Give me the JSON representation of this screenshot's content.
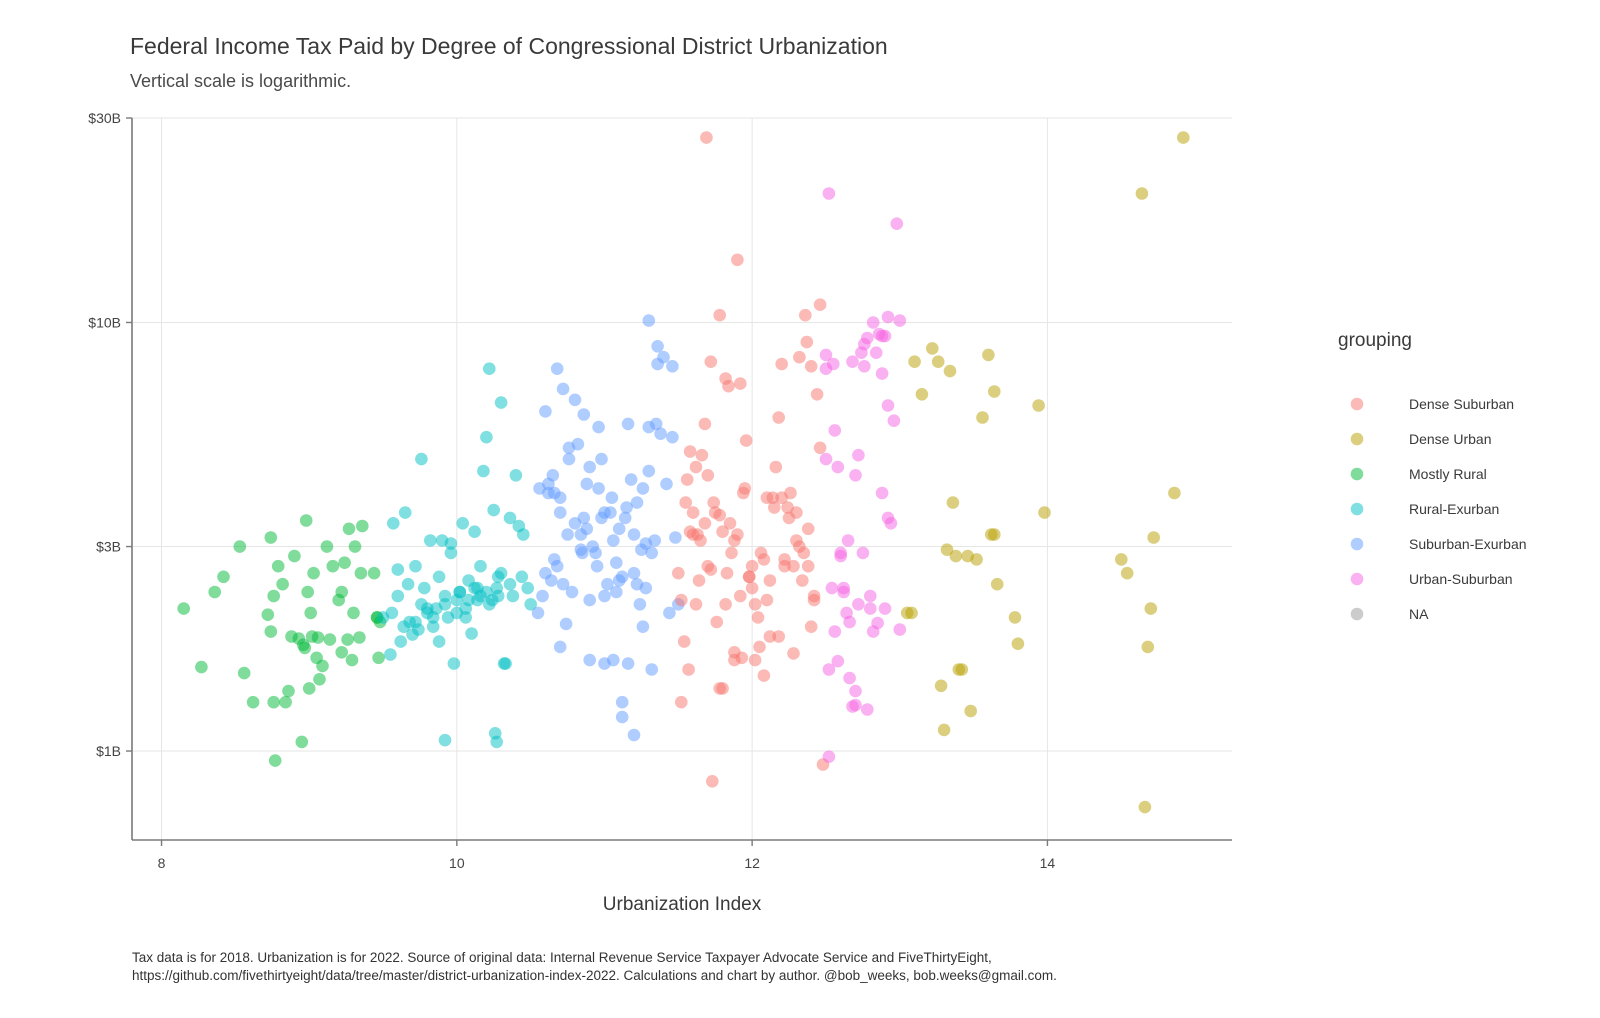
{
  "chart_data": {
    "type": "scatter",
    "title": "Federal Income Tax Paid by Degree of Congressional District Urbanization",
    "subtitle": "Vertical scale is logarithmic.",
    "xlabel": "Urbanization Index",
    "ylabel": "",
    "x_ticks": [
      {
        "value": 8,
        "label": "8"
      },
      {
        "value": 10,
        "label": "10"
      },
      {
        "value": 12,
        "label": "12"
      },
      {
        "value": 14,
        "label": "14"
      }
    ],
    "y_ticks": [
      {
        "value": 1,
        "label": "$1B"
      },
      {
        "value": 3,
        "label": "$3B"
      },
      {
        "value": 10,
        "label": "$10B"
      },
      {
        "value": 30,
        "label": "$30B"
      }
    ],
    "xlim": [
      7.8,
      15.25
    ],
    "ylim": [
      0.62,
      30
    ],
    "y_scale": "log",
    "grid": true,
    "legend": {
      "title": "grouping",
      "placement": "right",
      "entries": [
        {
          "name": "Dense Suburban",
          "color": "#f8766d"
        },
        {
          "name": "Dense Urban",
          "color": "#b79f00"
        },
        {
          "name": "Mostly Rural",
          "color": "#00ba38"
        },
        {
          "name": "Rural-Exurban",
          "color": "#00bfc4"
        },
        {
          "name": "Suburban-Exurban",
          "color": "#619cff"
        },
        {
          "name": "Urban-Suburban",
          "color": "#f564e3"
        },
        {
          "name": "NA",
          "color": "#999999"
        }
      ]
    },
    "caption": [
      "Tax data is for 2018. Urbanization is for 2022. Source of original data: Internal Revenue Service Taxpayer Advocate Service and FiveThirtyEight,",
      "https://github.com/fivethirtyeight/data/tree/master/district-urbanization-index-2022. Calculations and chart by author. @bob_weeks, bob.weeks@gmail.com."
    ],
    "series": [
      {
        "name": "Mostly Rural",
        "x": [
          8.15,
          8.27,
          8.36,
          8.42,
          8.53,
          8.56,
          8.62,
          8.72,
          8.74,
          8.76,
          8.77,
          8.79,
          8.82,
          8.84,
          8.86,
          8.88,
          8.9,
          8.93,
          8.95,
          8.96,
          8.98,
          9.0,
          9.01,
          9.03,
          9.05,
          9.06,
          9.07,
          9.09,
          9.12,
          9.14,
          9.16,
          9.2,
          9.22,
          9.24,
          9.26,
          9.27,
          9.29,
          9.31,
          9.34,
          9.36,
          9.44,
          9.46,
          9.47,
          9.48,
          8.74,
          8.76,
          8.97,
          8.99,
          9.3,
          9.35,
          9.02,
          9.22,
          9.46
        ],
        "y": [
          2.15,
          1.57,
          2.35,
          2.55,
          3.0,
          1.52,
          1.3,
          2.08,
          3.15,
          1.3,
          0.95,
          2.7,
          2.45,
          1.3,
          1.38,
          1.85,
          2.85,
          1.83,
          1.05,
          1.77,
          3.45,
          1.4,
          2.1,
          2.6,
          1.65,
          1.84,
          1.47,
          1.58,
          3.0,
          1.82,
          2.7,
          2.25,
          1.7,
          2.75,
          1.82,
          3.3,
          1.63,
          3.0,
          1.84,
          3.35,
          2.6,
          2.05,
          1.65,
          2.0,
          1.9,
          2.3,
          1.74,
          2.35,
          2.1,
          2.6,
          1.85,
          2.35,
          2.05
        ]
      },
      {
        "name": "Rural-Exurban",
        "x": [
          9.5,
          9.55,
          9.57,
          9.6,
          9.62,
          9.65,
          9.67,
          9.7,
          9.72,
          9.74,
          9.76,
          9.78,
          9.8,
          9.82,
          9.84,
          9.86,
          9.88,
          9.9,
          9.92,
          9.94,
          9.96,
          9.98,
          10.0,
          10.02,
          10.04,
          10.06,
          10.08,
          10.1,
          10.12,
          10.14,
          10.16,
          10.18,
          10.2,
          10.22,
          10.25,
          10.27,
          10.28,
          10.3,
          10.33,
          10.36,
          10.38,
          10.4,
          10.42,
          10.45,
          10.48,
          10.5,
          9.6,
          9.68,
          9.76,
          9.84,
          9.92,
          10.0,
          10.06,
          10.12,
          10.16,
          10.2,
          10.24,
          10.28,
          9.56,
          9.64,
          9.72,
          9.8,
          9.88,
          9.96,
          10.02,
          10.08,
          10.14,
          10.22,
          10.3,
          10.36,
          10.44,
          9.92,
          10.26,
          10.27,
          10.32
        ],
        "y": [
          2.05,
          1.68,
          3.4,
          2.3,
          1.8,
          3.6,
          2.45,
          1.87,
          2.7,
          1.92,
          4.8,
          2.4,
          2.1,
          3.1,
          1.95,
          2.15,
          1.8,
          3.1,
          2.2,
          2.05,
          3.05,
          1.6,
          2.25,
          2.35,
          3.4,
          2.05,
          2.5,
          1.88,
          3.25,
          2.25,
          2.7,
          4.5,
          5.4,
          7.8,
          3.65,
          2.4,
          2.3,
          6.5,
          1.6,
          3.5,
          2.3,
          4.4,
          3.35,
          3.2,
          2.4,
          2.2,
          2.65,
          2.0,
          2.2,
          2.05,
          2.3,
          2.1,
          2.15,
          2.4,
          2.3,
          2.35,
          2.25,
          2.55,
          2.1,
          1.95,
          2.0,
          2.15,
          2.55,
          2.9,
          2.35,
          2.25,
          2.4,
          2.2,
          2.6,
          2.45,
          2.55,
          1.06,
          1.1,
          1.05,
          1.6
        ]
      },
      {
        "name": "Suburban-Exurban",
        "x": [
          10.55,
          10.58,
          10.6,
          10.62,
          10.64,
          10.66,
          10.68,
          10.7,
          10.72,
          10.74,
          10.76,
          10.78,
          10.8,
          10.82,
          10.84,
          10.86,
          10.88,
          10.9,
          10.92,
          10.94,
          10.96,
          10.98,
          11.0,
          11.02,
          11.04,
          11.06,
          11.08,
          11.1,
          11.12,
          11.14,
          11.16,
          11.18,
          11.2,
          11.22,
          11.24,
          11.26,
          11.28,
          11.3,
          11.32,
          11.34,
          11.36,
          11.38,
          11.4,
          11.42,
          11.44,
          11.46,
          11.48,
          11.5,
          10.6,
          10.65,
          10.7,
          10.75,
          10.8,
          10.85,
          10.9,
          10.95,
          11.0,
          11.05,
          11.1,
          11.15,
          11.2,
          11.25,
          11.3,
          11.35,
          10.68,
          10.72,
          10.84,
          10.88,
          11.08,
          11.12,
          11.28,
          11.32,
          10.56,
          10.66,
          10.76,
          10.86,
          10.96,
          11.06,
          11.16,
          11.26,
          11.36,
          11.46,
          10.9,
          11.0,
          11.12,
          11.2,
          11.3,
          10.7,
          10.62,
          10.98,
          11.22
        ],
        "y": [
          2.1,
          2.3,
          6.2,
          4.0,
          2.5,
          2.8,
          7.8,
          3.6,
          7.0,
          1.98,
          4.8,
          2.35,
          6.6,
          5.2,
          3.2,
          3.5,
          4.2,
          2.25,
          3.0,
          2.9,
          4.1,
          3.5,
          2.3,
          2.45,
          3.6,
          1.63,
          2.75,
          3.3,
          1.2,
          3.5,
          5.8,
          4.3,
          2.6,
          3.8,
          2.2,
          4.1,
          2.4,
          5.7,
          2.9,
          3.1,
          8.8,
          5.5,
          8.3,
          4.2,
          2.1,
          5.4,
          3.15,
          2.2,
          2.6,
          4.4,
          3.9,
          3.2,
          3.4,
          2.9,
          4.6,
          2.7,
          3.6,
          3.9,
          2.5,
          3.7,
          3.2,
          2.95,
          4.5,
          5.8,
          2.7,
          2.45,
          2.95,
          3.3,
          2.35,
          2.55,
          3.05,
          1.55,
          4.1,
          4.0,
          5.1,
          6.1,
          5.7,
          3.1,
          1.6,
          1.95,
          8.0,
          7.9,
          1.63,
          1.6,
          1.3,
          1.09,
          10.1,
          1.75,
          4.2,
          4.8,
          2.45
        ]
      },
      {
        "name": "Dense Suburban",
        "x": [
          11.5,
          11.52,
          11.54,
          11.56,
          11.58,
          11.6,
          11.62,
          11.64,
          11.66,
          11.68,
          11.7,
          11.72,
          11.74,
          11.76,
          11.78,
          11.8,
          11.82,
          11.84,
          11.86,
          11.88,
          11.9,
          11.92,
          11.94,
          11.96,
          11.98,
          12.0,
          12.02,
          12.04,
          12.06,
          12.08,
          12.1,
          12.12,
          12.14,
          12.16,
          12.18,
          12.2,
          12.22,
          12.24,
          12.26,
          12.28,
          12.3,
          12.32,
          12.34,
          12.36,
          12.38,
          12.4,
          12.42,
          12.44,
          12.46,
          12.48,
          11.55,
          11.6,
          11.65,
          11.7,
          11.75,
          11.8,
          11.85,
          11.9,
          11.95,
          12.0,
          12.05,
          12.1,
          12.15,
          12.2,
          12.25,
          12.3,
          12.35,
          12.4,
          11.58,
          11.68,
          11.78,
          11.88,
          11.98,
          12.08,
          12.18,
          12.28,
          12.38,
          11.62,
          11.72,
          11.82,
          11.92,
          12.02,
          12.12,
          12.22,
          12.32,
          12.42,
          11.69,
          11.88,
          11.78,
          12.37,
          12.46,
          11.52,
          11.57,
          11.63,
          11.73,
          11.83,
          11.93
        ],
        "y": [
          2.6,
          2.25,
          1.8,
          4.3,
          5.0,
          3.2,
          4.6,
          2.5,
          4.9,
          5.8,
          2.7,
          8.1,
          3.8,
          2.0,
          10.4,
          1.4,
          7.4,
          7.1,
          2.9,
          1.7,
          14.0,
          7.2,
          4.0,
          5.3,
          2.55,
          2.4,
          1.63,
          2.05,
          2.9,
          1.5,
          2.25,
          1.85,
          3.9,
          4.6,
          6.0,
          8.0,
          2.7,
          3.7,
          4.0,
          1.69,
          3.6,
          8.3,
          2.5,
          10.4,
          3.3,
          7.9,
          2.25,
          6.8,
          11.0,
          0.93,
          3.8,
          3.6,
          3.1,
          4.4,
          3.6,
          3.25,
          3.4,
          3.2,
          4.1,
          2.7,
          1.75,
          3.9,
          3.7,
          3.9,
          3.5,
          3.1,
          2.9,
          1.95,
          3.25,
          3.4,
          3.55,
          3.1,
          2.55,
          2.8,
          1.85,
          2.7,
          2.7,
          2.2,
          2.65,
          2.2,
          2.3,
          2.2,
          2.5,
          2.8,
          3.0,
          2.3,
          27.0,
          1.63,
          1.4,
          9.0,
          5.1,
          1.3,
          1.55,
          3.2,
          0.85,
          2.6,
          1.65
        ]
      },
      {
        "name": "Urban-Suburban",
        "x": [
          12.5,
          12.52,
          12.54,
          12.56,
          12.58,
          12.6,
          12.62,
          12.64,
          12.66,
          12.68,
          12.7,
          12.72,
          12.74,
          12.76,
          12.78,
          12.8,
          12.82,
          12.84,
          12.86,
          12.88,
          12.9,
          12.92,
          12.94,
          12.96,
          12.98,
          13.0,
          12.5,
          12.55,
          12.6,
          12.65,
          12.7,
          12.75,
          12.8,
          12.85,
          12.9,
          12.52,
          12.62,
          12.72,
          12.82,
          12.92,
          12.76,
          12.88,
          12.5,
          12.56,
          12.66,
          12.7,
          12.92,
          13.0,
          12.52,
          12.58,
          12.68,
          12.78,
          12.88
        ],
        "y": [
          8.4,
          20.0,
          2.4,
          5.6,
          4.6,
          2.85,
          2.35,
          2.1,
          1.48,
          8.1,
          1.28,
          4.9,
          8.5,
          7.9,
          9.2,
          2.15,
          10.0,
          8.5,
          9.4,
          7.6,
          9.3,
          6.4,
          3.4,
          5.9,
          17.0,
          10.1,
          7.8,
          8.0,
          2.9,
          3.1,
          4.4,
          2.9,
          2.3,
          1.99,
          2.15,
          1.55,
          2.4,
          2.2,
          1.9,
          10.3,
          8.9,
          4.0,
          4.8,
          1.9,
          2.0,
          1.38,
          3.5,
          1.92,
          0.97,
          1.62,
          1.27,
          1.25,
          9.3
        ]
      },
      {
        "name": "Dense Urban",
        "x": [
          13.05,
          13.1,
          13.15,
          13.22,
          13.26,
          13.28,
          13.3,
          13.32,
          13.34,
          13.36,
          13.4,
          13.42,
          13.46,
          13.48,
          13.52,
          13.56,
          13.6,
          13.62,
          13.64,
          13.66,
          13.78,
          13.8,
          13.94,
          13.98,
          14.5,
          14.54,
          14.64,
          14.66,
          14.68,
          14.7,
          14.72,
          14.86,
          14.92,
          13.08,
          13.38,
          13.64
        ],
        "y": [
          2.1,
          8.1,
          6.8,
          8.7,
          8.1,
          1.42,
          1.12,
          2.95,
          7.7,
          3.8,
          1.55,
          1.55,
          2.85,
          1.24,
          2.8,
          6.0,
          8.4,
          3.2,
          6.9,
          2.45,
          2.05,
          1.78,
          6.4,
          3.6,
          2.8,
          2.6,
          20.0,
          0.74,
          1.75,
          2.15,
          3.15,
          4.0,
          27.0,
          2.1,
          2.85,
          3.2
        ]
      }
    ]
  }
}
